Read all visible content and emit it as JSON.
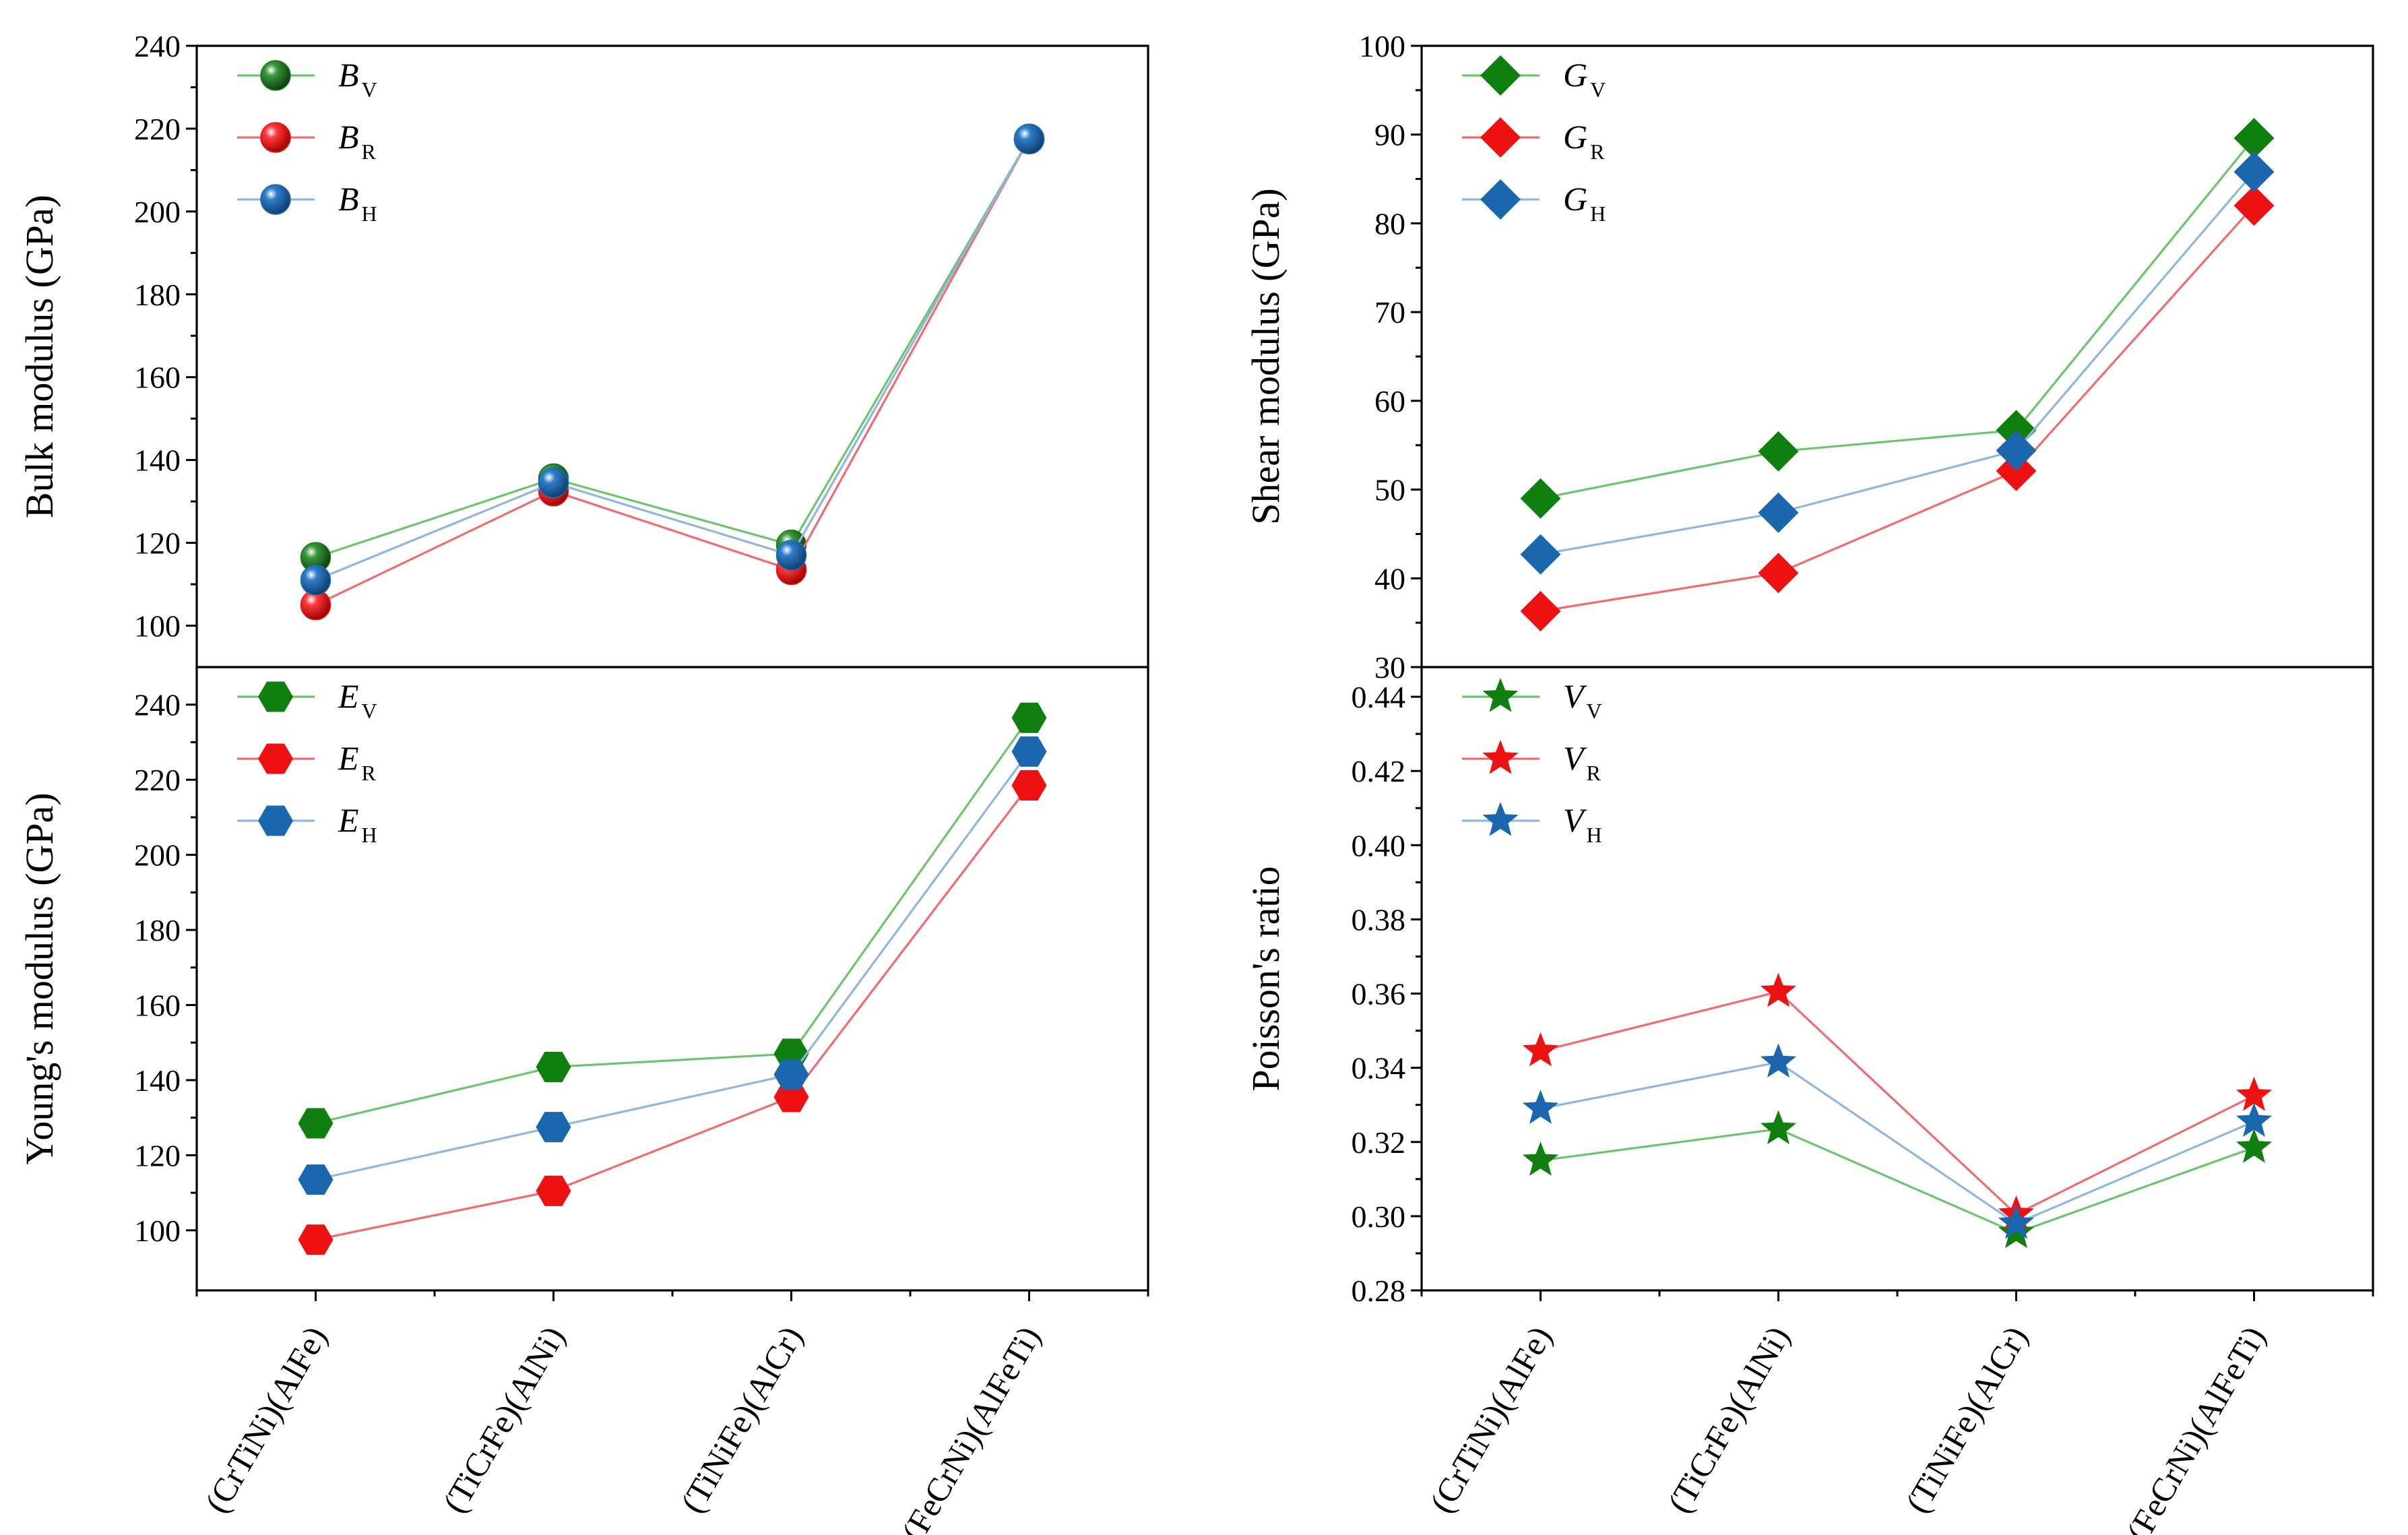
{
  "figure": {
    "categories": [
      "(CrTiNi)(AlFe)",
      "(TiCrFe)(AlNi)",
      "(TiNiFe)(AlCr)",
      "(FeCrNi)(AlFeTi)"
    ]
  },
  "chart_data": [
    {
      "type": "line",
      "id": "bulk",
      "ylabel": "Bulk modulus (GPa)",
      "xlabel": "",
      "ylim": [
        90,
        240
      ],
      "yticks": [
        100,
        120,
        140,
        160,
        180,
        200,
        220,
        240
      ],
      "tick_decimals": 0,
      "marker": "sphere",
      "categories": [
        "(CrTiNi)(AlFe)",
        "(TiCrFe)(AlNi)",
        "(TiNiFe)(AlCr)",
        "(FeCrNi)(AlFeTi)"
      ],
      "legend_position": "top-left",
      "series": [
        {
          "name": "B",
          "sub": "V",
          "color": "#1b7e1b",
          "line_color": "#6cc46c",
          "values": [
            116.5,
            135.5,
            119.5,
            217.5
          ]
        },
        {
          "name": "B",
          "sub": "R",
          "color": "#e8141b",
          "line_color": "#f06a6e",
          "values": [
            105,
            132.5,
            113.5,
            217.5
          ]
        },
        {
          "name": "B",
          "sub": "H",
          "color": "#1a6db5",
          "line_color": "#8fb6dc",
          "values": [
            111,
            134.5,
            117,
            217.5
          ]
        }
      ]
    },
    {
      "type": "line",
      "id": "shear",
      "ylabel": "Shear modulus (GPa)",
      "xlabel": "",
      "ylim": [
        30,
        100
      ],
      "yticks": [
        30,
        40,
        50,
        60,
        70,
        80,
        90,
        100
      ],
      "tick_decimals": 0,
      "marker": "diamond",
      "categories": [
        "(CrTiNi)(AlFe)",
        "(TiCrFe)(AlNi)",
        "(TiNiFe)(AlCr)",
        "(FeCrNi)(AlFeTi)"
      ],
      "legend_position": "top-left",
      "series": [
        {
          "name": "G",
          "sub": "V",
          "color": "#0f7f10",
          "line_color": "#6cc46c",
          "values": [
            49,
            54.3,
            56.7,
            89.6
          ]
        },
        {
          "name": "G",
          "sub": "R",
          "color": "#ee1111",
          "line_color": "#f06a6e",
          "values": [
            36.3,
            40.6,
            52.1,
            82
          ]
        },
        {
          "name": "G",
          "sub": "H",
          "color": "#1a67ad",
          "line_color": "#8fb6dc",
          "values": [
            42.7,
            47.4,
            54.4,
            85.8
          ]
        }
      ]
    },
    {
      "type": "line",
      "id": "young",
      "ylabel": "Young's modulus (GPa)",
      "xlabel": "",
      "ylim": [
        84,
        250
      ],
      "yticks": [
        100,
        120,
        140,
        160,
        180,
        200,
        220,
        240
      ],
      "tick_decimals": 0,
      "marker": "hexagon",
      "categories": [
        "(CrTiNi)(AlFe)",
        "(TiCrFe)(AlNi)",
        "(TiNiFe)(AlCr)",
        "(FeCrNi)(AlFeTi)"
      ],
      "legend_position": "top-left",
      "series": [
        {
          "name": "E",
          "sub": "V",
          "color": "#0f7f10",
          "line_color": "#6cc46c",
          "values": [
            128.5,
            143.5,
            147,
            236.5
          ]
        },
        {
          "name": "E",
          "sub": "R",
          "color": "#ee1111",
          "line_color": "#f06a6e",
          "values": [
            97.5,
            110.5,
            135.5,
            218.5
          ]
        },
        {
          "name": "E",
          "sub": "H",
          "color": "#1a67ad",
          "line_color": "#8fb6dc",
          "values": [
            113.5,
            127.5,
            141.5,
            227.5
          ]
        }
      ]
    },
    {
      "type": "line",
      "id": "poisson",
      "ylabel": "Poisson's ratio",
      "xlabel": "",
      "ylim": [
        0.28,
        0.448
      ],
      "yticks": [
        0.28,
        0.3,
        0.32,
        0.34,
        0.36,
        0.38,
        0.4,
        0.42,
        0.44
      ],
      "tick_decimals": 2,
      "marker": "star",
      "categories": [
        "(CrTiNi)(AlFe)",
        "(TiCrFe)(AlNi)",
        "(TiNiFe)(AlCr)",
        "(FeCrNi)(AlFeTi)"
      ],
      "legend_position": "top-left",
      "series": [
        {
          "name": "V",
          "sub": "V",
          "color": "#0f7f10",
          "line_color": "#6cc46c",
          "values": [
            0.315,
            0.3235,
            0.2955,
            0.3185
          ]
        },
        {
          "name": "V",
          "sub": "R",
          "color": "#ee1111",
          "line_color": "#f06a6e",
          "values": [
            0.3445,
            0.3605,
            0.3005,
            0.3325
          ]
        },
        {
          "name": "V",
          "sub": "H",
          "color": "#1a67ad",
          "line_color": "#8fb6dc",
          "values": [
            0.329,
            0.3415,
            0.298,
            0.3255
          ]
        }
      ]
    }
  ]
}
